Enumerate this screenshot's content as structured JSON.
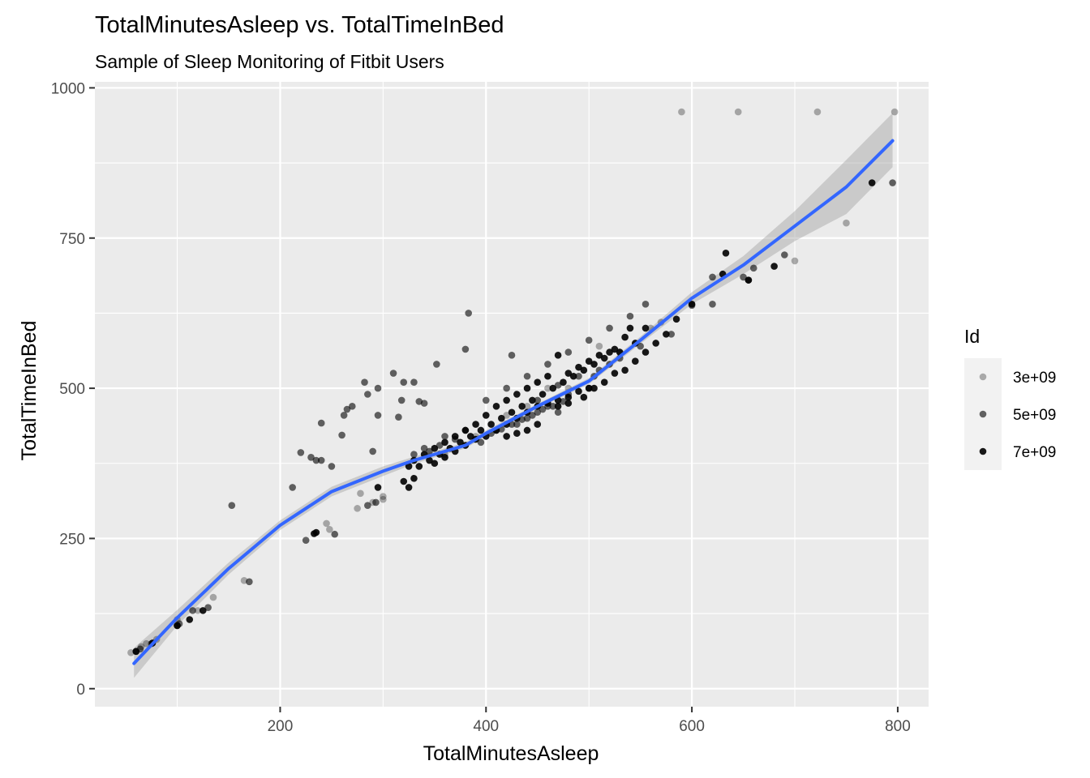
{
  "chart_data": {
    "type": "scatter",
    "title": "TotalMinutesAsleep vs. TotalTimeInBed",
    "subtitle": "Sample of Sleep Monitoring of Fitbit Users",
    "xlabel": "TotalMinutesAsleep",
    "ylabel": "TotalTimeInBed",
    "xlim": [
      20,
      830
    ],
    "ylim": [
      -30,
      1010
    ],
    "x_ticks": [
      200,
      400,
      600,
      800
    ],
    "y_ticks": [
      0,
      250,
      500,
      750,
      1000
    ],
    "x_tick_labels": [
      "200",
      "400",
      "600",
      "800"
    ],
    "y_tick_labels": [
      "0",
      "250",
      "500",
      "750",
      "1000"
    ],
    "grid": true,
    "legend": {
      "title": "Id",
      "placement": "right",
      "entries": [
        {
          "label": "3e+09",
          "alpha": 0.3
        },
        {
          "label": "5e+09",
          "alpha": 0.6
        },
        {
          "label": "7e+09",
          "alpha": 0.9
        }
      ]
    },
    "colors": {
      "panel": "#ebebeb",
      "grid_major": "#ffffff",
      "point": "#000000",
      "smooth_line": "#3366ff",
      "confidence_band": "#999999"
    },
    "smooth": {
      "method": "loess",
      "x": [
        58,
        100,
        150,
        200,
        250,
        300,
        330,
        350,
        380,
        400,
        450,
        500,
        550,
        600,
        650,
        700,
        750,
        795
      ],
      "y": [
        42,
        118,
        200,
        272,
        328,
        362,
        380,
        390,
        405,
        425,
        470,
        512,
        580,
        650,
        705,
        770,
        835,
        912
      ],
      "ci_lower": [
        18,
        105,
        190,
        264,
        320,
        354,
        374,
        385,
        400,
        420,
        466,
        507,
        574,
        640,
        690,
        745,
        790,
        868
      ],
      "ci_upper": [
        68,
        131,
        210,
        280,
        336,
        370,
        386,
        395,
        410,
        430,
        474,
        517,
        586,
        660,
        720,
        795,
        880,
        958
      ]
    },
    "series": [
      {
        "name": "3e+09",
        "alpha": 0.3,
        "points": [
          [
            590,
            960
          ],
          [
            645,
            960
          ],
          [
            722,
            960
          ],
          [
            797,
            960
          ],
          [
            750,
            775
          ],
          [
            700,
            712
          ],
          [
            570,
            610
          ],
          [
            510,
            570
          ],
          [
            460,
            500
          ],
          [
            420,
            455
          ],
          [
            390,
            420
          ],
          [
            300,
            320
          ],
          [
            290,
            310
          ],
          [
            275,
            300
          ],
          [
            278,
            325
          ],
          [
            300,
            315
          ],
          [
            245,
            275
          ],
          [
            248,
            265
          ],
          [
            165,
            180
          ],
          [
            135,
            152
          ],
          [
            120,
            130
          ],
          [
            100,
            115
          ],
          [
            80,
            82
          ],
          [
            70,
            75
          ],
          [
            65,
            70
          ],
          [
            55,
            60
          ],
          [
            480,
            500
          ],
          [
            440,
            470
          ],
          [
            360,
            390
          ],
          [
            560,
            600
          ],
          [
            530,
            560
          ]
        ]
      },
      {
        "name": "5e+09",
        "alpha": 0.6,
        "points": [
          [
            383,
            625
          ],
          [
            380,
            565
          ],
          [
            425,
            555
          ],
          [
            352,
            540
          ],
          [
            282,
            510
          ],
          [
            310,
            525
          ],
          [
            330,
            510
          ],
          [
            320,
            510
          ],
          [
            295,
            500
          ],
          [
            285,
            490
          ],
          [
            270,
            470
          ],
          [
            265,
            465
          ],
          [
            262,
            455
          ],
          [
            240,
            442
          ],
          [
            295,
            455
          ],
          [
            340,
            475
          ],
          [
            318,
            480
          ],
          [
            335,
            478
          ],
          [
            315,
            452
          ],
          [
            260,
            422
          ],
          [
            220,
            393
          ],
          [
            235,
            380
          ],
          [
            240,
            380
          ],
          [
            230,
            385
          ],
          [
            250,
            370
          ],
          [
            290,
            395
          ],
          [
            212,
            335
          ],
          [
            153,
            305
          ],
          [
            293,
            310
          ],
          [
            285,
            305
          ],
          [
            225,
            247
          ],
          [
            253,
            257
          ],
          [
            170,
            178
          ],
          [
            130,
            135
          ],
          [
            115,
            130
          ],
          [
            102,
            108
          ],
          [
            100,
            105
          ],
          [
            75,
            75
          ],
          [
            60,
            62
          ],
          [
            64,
            66
          ],
          [
            795,
            842
          ],
          [
            690,
            722
          ],
          [
            660,
            700
          ],
          [
            650,
            685
          ],
          [
            620,
            640
          ],
          [
            600,
            638
          ],
          [
            555,
            640
          ],
          [
            540,
            620
          ],
          [
            520,
            600
          ],
          [
            500,
            580
          ],
          [
            480,
            560
          ],
          [
            460,
            540
          ],
          [
            440,
            520
          ],
          [
            420,
            500
          ],
          [
            400,
            480
          ],
          [
            360,
            420
          ],
          [
            340,
            400
          ],
          [
            330,
            390
          ],
          [
            370,
            415
          ],
          [
            380,
            430
          ],
          [
            450,
            480
          ],
          [
            470,
            505
          ],
          [
            490,
            520
          ],
          [
            510,
            530
          ],
          [
            530,
            550
          ],
          [
            550,
            570
          ],
          [
            470,
            460
          ],
          [
            430,
            440
          ],
          [
            410,
            430
          ],
          [
            395,
            410
          ],
          [
            345,
            395
          ],
          [
            355,
            405
          ],
          [
            500,
            500
          ],
          [
            480,
            490
          ],
          [
            460,
            470
          ],
          [
            450,
            460
          ],
          [
            440,
            450
          ],
          [
            620,
            685
          ],
          [
            655,
            680
          ],
          [
            580,
            590
          ],
          [
            520,
            540
          ],
          [
            505,
            520
          ],
          [
            475,
            478
          ],
          [
            465,
            470
          ],
          [
            455,
            465
          ],
          [
            445,
            455
          ],
          [
            435,
            448
          ],
          [
            425,
            440
          ],
          [
            415,
            432
          ],
          [
            405,
            425
          ]
        ]
      },
      {
        "name": "7e+09",
        "alpha": 0.9,
        "points": [
          [
            775,
            842
          ],
          [
            680,
            703
          ],
          [
            655,
            680
          ],
          [
            630,
            690
          ],
          [
            633,
            725
          ],
          [
            600,
            640
          ],
          [
            585,
            615
          ],
          [
            555,
            600
          ],
          [
            540,
            600
          ],
          [
            535,
            585
          ],
          [
            530,
            560
          ],
          [
            520,
            560
          ],
          [
            510,
            555
          ],
          [
            500,
            545
          ],
          [
            490,
            535
          ],
          [
            480,
            525
          ],
          [
            470,
            555
          ],
          [
            460,
            520
          ],
          [
            450,
            510
          ],
          [
            440,
            500
          ],
          [
            430,
            490
          ],
          [
            420,
            480
          ],
          [
            410,
            470
          ],
          [
            400,
            455
          ],
          [
            390,
            440
          ],
          [
            380,
            430
          ],
          [
            370,
            420
          ],
          [
            360,
            410
          ],
          [
            350,
            400
          ],
          [
            340,
            390
          ],
          [
            330,
            380
          ],
          [
            325,
            370
          ],
          [
            330,
            350
          ],
          [
            320,
            345
          ],
          [
            325,
            335
          ],
          [
            295,
            335
          ],
          [
            235,
            260
          ],
          [
            233,
            258
          ],
          [
            125,
            130
          ],
          [
            112,
            115
          ],
          [
            100,
            105
          ],
          [
            76,
            76
          ],
          [
            60,
            62
          ],
          [
            545,
            575
          ],
          [
            525,
            565
          ],
          [
            515,
            550
          ],
          [
            505,
            540
          ],
          [
            495,
            530
          ],
          [
            485,
            520
          ],
          [
            475,
            510
          ],
          [
            465,
            500
          ],
          [
            455,
            490
          ],
          [
            445,
            480
          ],
          [
            435,
            470
          ],
          [
            425,
            460
          ],
          [
            415,
            450
          ],
          [
            405,
            440
          ],
          [
            395,
            430
          ],
          [
            385,
            420
          ],
          [
            375,
            410
          ],
          [
            365,
            400
          ],
          [
            355,
            390
          ],
          [
            345,
            380
          ],
          [
            335,
            370
          ],
          [
            500,
            500
          ],
          [
            490,
            495
          ],
          [
            480,
            485
          ],
          [
            470,
            480
          ],
          [
            460,
            475
          ],
          [
            450,
            470
          ],
          [
            440,
            460
          ],
          [
            430,
            450
          ],
          [
            420,
            440
          ],
          [
            410,
            430
          ],
          [
            400,
            420
          ],
          [
            390,
            415
          ],
          [
            380,
            405
          ],
          [
            370,
            395
          ],
          [
            360,
            385
          ],
          [
            350,
            375
          ],
          [
            450,
            440
          ],
          [
            440,
            430
          ],
          [
            430,
            425
          ],
          [
            420,
            420
          ],
          [
            470,
            470
          ],
          [
            480,
            475
          ],
          [
            495,
            485
          ],
          [
            505,
            500
          ],
          [
            515,
            510
          ],
          [
            525,
            525
          ],
          [
            535,
            530
          ],
          [
            545,
            545
          ],
          [
            555,
            560
          ],
          [
            565,
            575
          ],
          [
            575,
            590
          ]
        ]
      }
    ]
  }
}
